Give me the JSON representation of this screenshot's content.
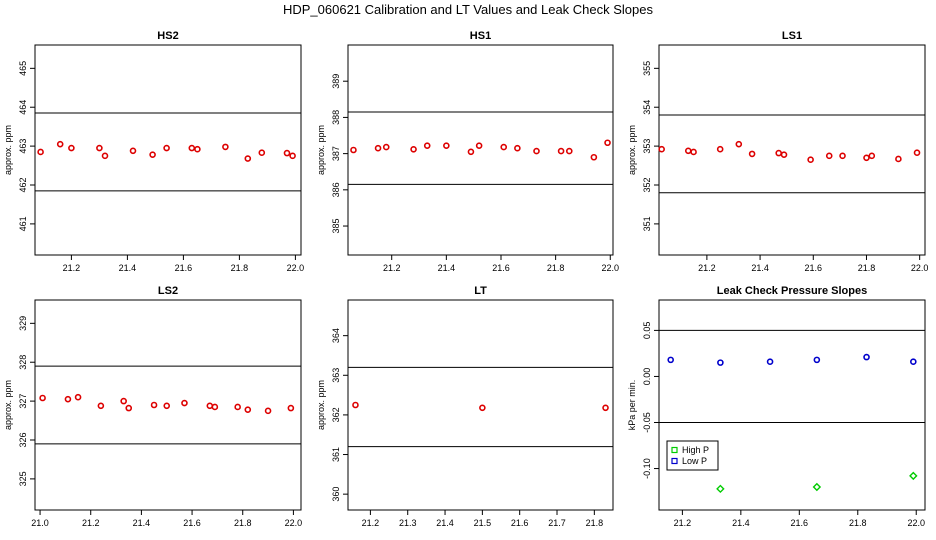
{
  "figure": {
    "title": "HDP_060621  Calibration and LT Values and Leak Check Slopes"
  },
  "chart_data": [
    {
      "type": "scatter",
      "title": "HS2",
      "ylabel": "approx. ppm",
      "xlim": [
        21.07,
        22.02
      ],
      "ylim": [
        460.2,
        465.6
      ],
      "xticks": [
        "21.2",
        "21.4",
        "21.6",
        "21.8",
        "22.0"
      ],
      "xtick_values": [
        21.2,
        21.4,
        21.6,
        21.8,
        22.0
      ],
      "yticks": [
        "461",
        "462",
        "463",
        "464",
        "465"
      ],
      "ytick_values": [
        461,
        462,
        463,
        464,
        465
      ],
      "hlines": [
        463.85,
        461.85
      ],
      "series": [
        {
          "color": "#dd0000",
          "x": [
            21.09,
            21.16,
            21.2,
            21.3,
            21.32,
            21.42,
            21.49,
            21.54,
            21.63,
            21.65,
            21.75,
            21.83,
            21.88,
            21.97,
            21.99
          ],
          "y": [
            462.85,
            463.05,
            462.95,
            462.95,
            462.75,
            462.88,
            462.78,
            462.95,
            462.95,
            462.92,
            462.98,
            462.68,
            462.83,
            462.82,
            462.75
          ]
        }
      ]
    },
    {
      "type": "scatter",
      "title": "HS1",
      "ylabel": "approx. ppm",
      "xlim": [
        21.04,
        22.01
      ],
      "ylim": [
        384.2,
        390.0
      ],
      "xticks": [
        "21.2",
        "21.4",
        "21.6",
        "21.8",
        "22.0"
      ],
      "xtick_values": [
        21.2,
        21.4,
        21.6,
        21.8,
        22.0
      ],
      "yticks": [
        "385",
        "386",
        "387",
        "388",
        "389"
      ],
      "ytick_values": [
        385,
        386,
        387,
        388,
        389
      ],
      "hlines": [
        388.15,
        386.15
      ],
      "series": [
        {
          "color": "#dd0000",
          "x": [
            21.06,
            21.15,
            21.18,
            21.28,
            21.33,
            21.4,
            21.49,
            21.52,
            21.61,
            21.66,
            21.73,
            21.82,
            21.85,
            21.94,
            21.99
          ],
          "y": [
            387.1,
            387.15,
            387.18,
            387.12,
            387.22,
            387.22,
            387.05,
            387.22,
            387.18,
            387.15,
            387.07,
            387.07,
            387.07,
            386.9,
            387.3
          ]
        }
      ]
    },
    {
      "type": "scatter",
      "title": "LS1",
      "ylabel": "approx. ppm",
      "xlim": [
        21.02,
        22.02
      ],
      "ylim": [
        350.2,
        355.6
      ],
      "xticks": [
        "21.2",
        "21.4",
        "21.6",
        "21.8",
        "22.0"
      ],
      "xtick_values": [
        21.2,
        21.4,
        21.6,
        21.8,
        22.0
      ],
      "yticks": [
        "351",
        "352",
        "353",
        "354",
        "355"
      ],
      "ytick_values": [
        351,
        352,
        353,
        354,
        355
      ],
      "hlines": [
        353.8,
        351.8
      ],
      "series": [
        {
          "color": "#dd0000",
          "x": [
            21.03,
            21.13,
            21.15,
            21.25,
            21.32,
            21.37,
            21.47,
            21.49,
            21.59,
            21.66,
            21.71,
            21.8,
            21.82,
            21.92,
            21.99
          ],
          "y": [
            352.92,
            352.88,
            352.85,
            352.92,
            353.05,
            352.8,
            352.82,
            352.78,
            352.65,
            352.75,
            352.75,
            352.7,
            352.75,
            352.67,
            352.83
          ]
        }
      ]
    },
    {
      "type": "scatter",
      "title": "LS2",
      "ylabel": "approx. ppm",
      "xlim": [
        20.98,
        22.03
      ],
      "ylim": [
        324.2,
        329.6
      ],
      "xticks": [
        "21.0",
        "21.2",
        "21.4",
        "21.6",
        "21.8",
        "22.0"
      ],
      "xtick_values": [
        21.0,
        21.2,
        21.4,
        21.6,
        21.8,
        22.0
      ],
      "yticks": [
        "325",
        "326",
        "327",
        "328",
        "329"
      ],
      "ytick_values": [
        325,
        326,
        327,
        328,
        329
      ],
      "hlines": [
        327.9,
        325.9
      ],
      "series": [
        {
          "color": "#dd0000",
          "x": [
            21.01,
            21.11,
            21.15,
            21.24,
            21.33,
            21.35,
            21.45,
            21.5,
            21.57,
            21.67,
            21.69,
            21.78,
            21.82,
            21.9,
            21.99
          ],
          "y": [
            327.08,
            327.05,
            327.1,
            326.88,
            327.0,
            326.82,
            326.9,
            326.88,
            326.95,
            326.88,
            326.85,
            326.85,
            326.78,
            326.75,
            326.82
          ]
        }
      ]
    },
    {
      "type": "scatter",
      "title": "LT",
      "ylabel": "approx. ppm",
      "xlim": [
        21.14,
        21.85
      ],
      "ylim": [
        359.6,
        364.9
      ],
      "xticks": [
        "21.2",
        "21.3",
        "21.4",
        "21.5",
        "21.6",
        "21.7",
        "21.8"
      ],
      "xtick_values": [
        21.2,
        21.3,
        21.4,
        21.5,
        21.6,
        21.7,
        21.8
      ],
      "yticks": [
        "360",
        "361",
        "362",
        "363",
        "364"
      ],
      "ytick_values": [
        360,
        361,
        362,
        363,
        364
      ],
      "hlines": [
        363.2,
        361.2
      ],
      "series": [
        {
          "color": "#dd0000",
          "x": [
            21.16,
            21.5,
            21.83
          ],
          "y": [
            362.25,
            362.18,
            362.18
          ]
        }
      ]
    },
    {
      "type": "scatter",
      "title": "Leak Check Pressure Slopes",
      "ylabel": "kPa per min.",
      "xlim": [
        21.12,
        22.03
      ],
      "ylim": [
        -0.145,
        0.083
      ],
      "xticks": [
        "21.2",
        "21.4",
        "21.6",
        "21.8",
        "22.0"
      ],
      "xtick_values": [
        21.2,
        21.4,
        21.6,
        21.8,
        22.0
      ],
      "yticks": [
        "-0.10",
        "-0.05",
        "0.00",
        "0.05"
      ],
      "ytick_values": [
        -0.1,
        -0.05,
        0.0,
        0.05
      ],
      "hlines": [
        0.05,
        -0.05
      ],
      "legend": {
        "position": "bottom-left",
        "entries": [
          "High P",
          "Low P"
        ]
      },
      "series": [
        {
          "name": "High P",
          "color": "#00cc00",
          "x": [
            21.33,
            21.66,
            21.99
          ],
          "y": [
            -0.122,
            -0.12,
            -0.108
          ]
        },
        {
          "name": "Low P",
          "color": "#0000cc",
          "x": [
            21.16,
            21.33,
            21.5,
            21.66,
            21.83,
            21.99
          ],
          "y": [
            0.018,
            0.015,
            0.016,
            0.018,
            0.021,
            0.016
          ]
        }
      ]
    }
  ]
}
